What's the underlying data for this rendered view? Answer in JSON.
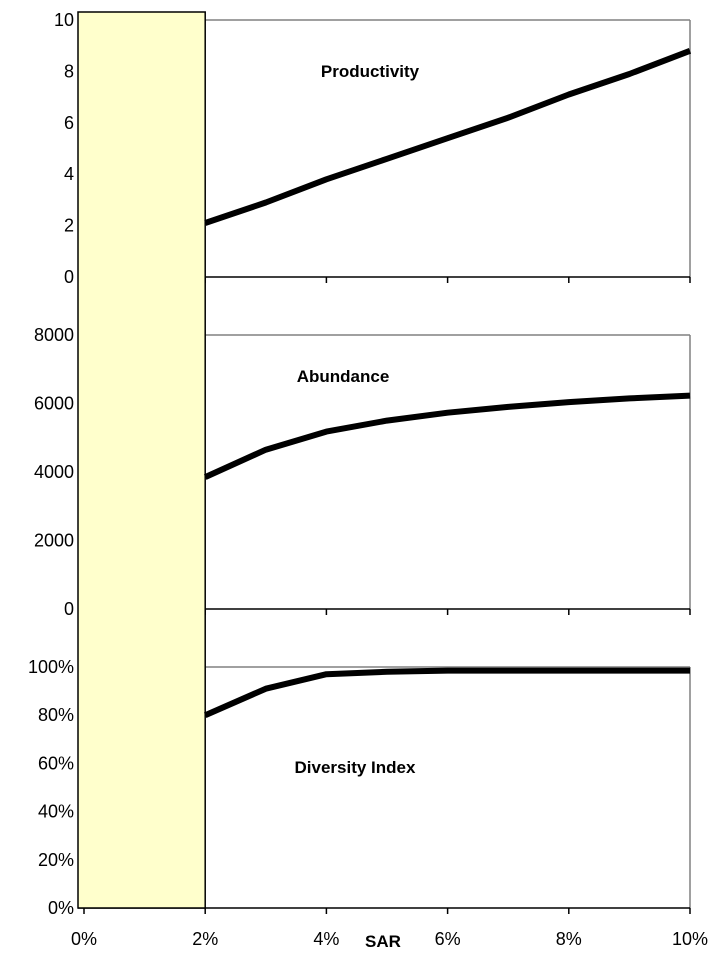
{
  "colors": {
    "background": "#ffffff",
    "shaded_region": "#ffffcc",
    "frame": "#808080",
    "axis": "#000000",
    "series_line": "#000000"
  },
  "shaded_region": {
    "x_start": 0,
    "x_end": 2
  },
  "x_axis": {
    "label": "SAR",
    "range": [
      0,
      10
    ],
    "ticks": [
      0,
      2,
      4,
      6,
      8,
      10
    ],
    "tick_labels": [
      "0%",
      "2%",
      "4%",
      "6%",
      "8%",
      "10%"
    ]
  },
  "chart_data": [
    {
      "type": "line",
      "title": "Productivity",
      "xlabel": "",
      "ylabel": "",
      "xlim": [
        0,
        10
      ],
      "ylim": [
        0,
        10
      ],
      "y_ticks": [
        0,
        2,
        4,
        6,
        8,
        10
      ],
      "y_tick_labels": [
        "0",
        "2",
        "4",
        "6",
        "8",
        "10"
      ],
      "grid": false,
      "series": [
        {
          "x": [
            2,
            3,
            4,
            5,
            6,
            7,
            8,
            9,
            10
          ],
          "y": [
            2.1,
            2.9,
            3.8,
            4.6,
            5.4,
            6.2,
            7.1,
            7.9,
            8.8
          ]
        }
      ]
    },
    {
      "type": "line",
      "title": "Abundance",
      "xlabel": "",
      "ylabel": "",
      "xlim": [
        0,
        10
      ],
      "ylim": [
        0,
        8000
      ],
      "y_ticks": [
        0,
        2000,
        4000,
        6000,
        8000
      ],
      "y_tick_labels": [
        "0",
        "2000",
        "4000",
        "6000",
        "8000"
      ],
      "grid": false,
      "series": [
        {
          "x": [
            2,
            3,
            4,
            5,
            6,
            7,
            8,
            9,
            10
          ],
          "y": [
            3850,
            4650,
            5180,
            5500,
            5730,
            5900,
            6040,
            6150,
            6230
          ]
        }
      ]
    },
    {
      "type": "line",
      "title": "Diversity Index",
      "xlabel": "SAR",
      "ylabel": "",
      "xlim": [
        0,
        10
      ],
      "ylim": [
        0,
        100
      ],
      "y_ticks": [
        0,
        20,
        40,
        60,
        80,
        100
      ],
      "y_tick_labels": [
        "0%",
        "20%",
        "40%",
        "60%",
        "80%",
        "100%"
      ],
      "grid": false,
      "series": [
        {
          "x": [
            2,
            3,
            4,
            5,
            6,
            7,
            8,
            9,
            10
          ],
          "y": [
            80,
            91,
            97,
            98,
            98.5,
            98.5,
            98.5,
            98.5,
            98.5
          ]
        }
      ]
    }
  ]
}
